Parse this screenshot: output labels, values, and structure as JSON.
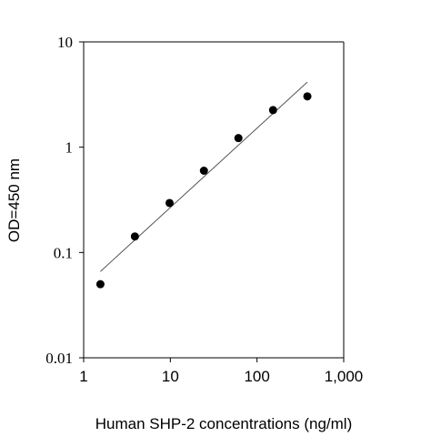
{
  "chart_data": {
    "type": "scatter",
    "title": "",
    "xlabel": "Human SHP-2 concentrations (ng/ml)",
    "ylabel": "OD=450 nm",
    "x_scale": "log",
    "y_scale": "log",
    "xlim": [
      1,
      1000
    ],
    "ylim": [
      0.01,
      10
    ],
    "x_ticks": [
      1,
      10,
      100,
      1000
    ],
    "x_tick_labels": [
      "1",
      "10",
      "100",
      "1,000"
    ],
    "y_ticks": [
      0.01,
      0.1,
      1,
      10
    ],
    "y_tick_labels": [
      "0.01",
      "0.1",
      "1",
      "10"
    ],
    "grid": false,
    "legend": "none",
    "points": [
      {
        "x": 1.56,
        "y": 0.05
      },
      {
        "x": 3.9,
        "y": 0.142
      },
      {
        "x": 9.8,
        "y": 0.295
      },
      {
        "x": 24.4,
        "y": 0.598
      },
      {
        "x": 61,
        "y": 1.22
      },
      {
        "x": 153,
        "y": 2.25
      },
      {
        "x": 381,
        "y": 3.04
      }
    ],
    "fit_line": {
      "x": [
        1.56,
        381
      ],
      "y": [
        0.066,
        4.15
      ]
    },
    "point_color": "#000000",
    "line_color": "#555555"
  }
}
